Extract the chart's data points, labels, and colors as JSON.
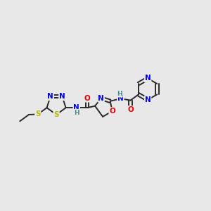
{
  "background_color": "#e8e8e8",
  "bond_color": "#2a2a2a",
  "N_color": "#0000ee",
  "O_color": "#ee0000",
  "S_color": "#bbbb00",
  "H_color": "#4a9090",
  "figsize": [
    3.0,
    3.0
  ],
  "dpi": 100,
  "xlim": [
    0,
    12
  ],
  "ylim": [
    2,
    9
  ]
}
